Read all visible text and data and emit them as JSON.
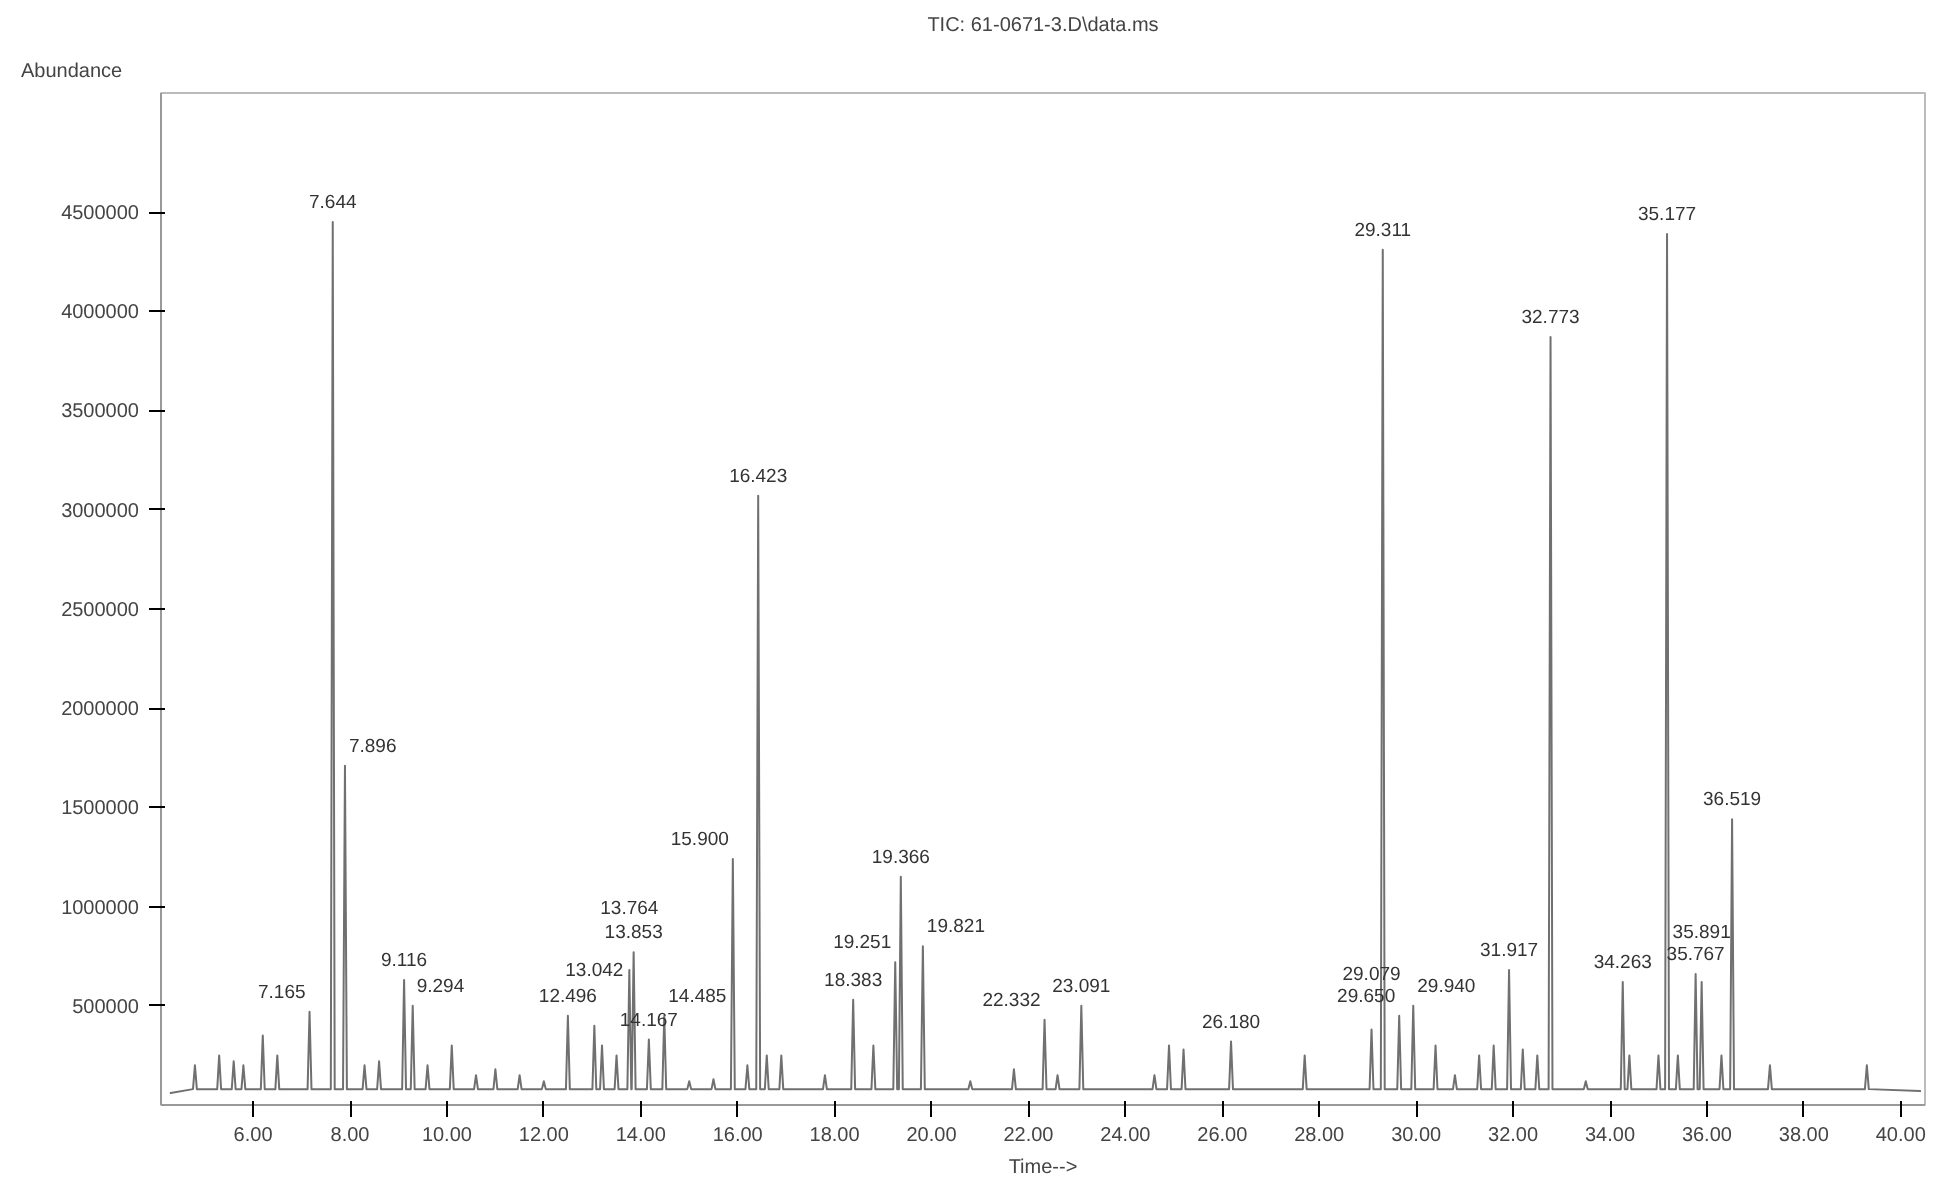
{
  "chart_data": {
    "type": "line",
    "title": "TIC: 61-0671-3.D\\data.ms",
    "xlabel": "Time-->",
    "ylabel": "Abundance",
    "xlim": [
      4.1,
      40.5
    ],
    "ylim": [
      0,
      5100000
    ],
    "xticks": [
      {
        "value": 6,
        "label": "6.00"
      },
      {
        "value": 8,
        "label": "8.00"
      },
      {
        "value": 10,
        "label": "10.00"
      },
      {
        "value": 12,
        "label": "12.00"
      },
      {
        "value": 14,
        "label": "14.00"
      },
      {
        "value": 16,
        "label": "16.00"
      },
      {
        "value": 18,
        "label": "18.00"
      },
      {
        "value": 20,
        "label": "20.00"
      },
      {
        "value": 22,
        "label": "22.00"
      },
      {
        "value": 24,
        "label": "24.00"
      },
      {
        "value": 26,
        "label": "26.00"
      },
      {
        "value": 28,
        "label": "28.00"
      },
      {
        "value": 30,
        "label": "30.00"
      },
      {
        "value": 32,
        "label": "32.00"
      },
      {
        "value": 34,
        "label": "34.00"
      },
      {
        "value": 36,
        "label": "36.00"
      },
      {
        "value": 38,
        "label": "38.00"
      },
      {
        "value": 40,
        "label": "40.00"
      }
    ],
    "yticks": [
      500000,
      1000000,
      1500000,
      2000000,
      2500000,
      3000000,
      3500000,
      4000000,
      4500000
    ],
    "grid": false,
    "series": [
      {
        "color": "#707070",
        "x": [
          4.3,
          4.76,
          4.8,
          4.84,
          5.26,
          5.3,
          5.34,
          5.56,
          5.6,
          5.64,
          5.76,
          5.8,
          5.84,
          6.16,
          6.2,
          6.24,
          6.46,
          6.5,
          6.54,
          7.125,
          7.165,
          7.205,
          7.604,
          7.644,
          7.684,
          7.856,
          7.896,
          7.936,
          8.26,
          8.3,
          8.34,
          8.56,
          8.6,
          8.64,
          9.076,
          9.116,
          9.156,
          9.254,
          9.294,
          9.334,
          9.56,
          9.6,
          9.64,
          10.06,
          10.1,
          10.14,
          10.56,
          10.6,
          10.64,
          10.96,
          11.0,
          11.04,
          11.46,
          11.5,
          11.54,
          11.96,
          12.0,
          12.04,
          12.456,
          12.496,
          12.536,
          13.002,
          13.042,
          13.082,
          13.16,
          13.2,
          13.24,
          13.46,
          13.5,
          13.54,
          13.724,
          13.764,
          13.804,
          13.813,
          13.853,
          13.893,
          14.127,
          14.167,
          14.207,
          14.445,
          14.485,
          14.525,
          14.96,
          15.0,
          15.04,
          15.46,
          15.5,
          15.54,
          15.86,
          15.9,
          15.94,
          16.16,
          16.2,
          16.24,
          16.383,
          16.423,
          16.463,
          16.56,
          16.6,
          16.64,
          16.86,
          16.9,
          16.94,
          17.76,
          17.8,
          17.84,
          18.343,
          18.383,
          18.423,
          18.76,
          18.8,
          18.84,
          19.211,
          19.251,
          19.291,
          19.326,
          19.366,
          19.406,
          19.781,
          19.821,
          19.861,
          20.76,
          20.8,
          20.84,
          21.66,
          21.7,
          21.74,
          22.292,
          22.332,
          22.372,
          22.56,
          22.6,
          22.64,
          23.051,
          23.091,
          23.131,
          24.56,
          24.6,
          24.64,
          24.86,
          24.9,
          24.94,
          25.16,
          25.2,
          25.24,
          26.14,
          26.18,
          26.22,
          27.66,
          27.7,
          27.74,
          29.039,
          29.079,
          29.119,
          29.271,
          29.311,
          29.351,
          29.61,
          29.65,
          29.69,
          29.9,
          29.94,
          29.98,
          30.36,
          30.4,
          30.44,
          30.76,
          30.8,
          30.84,
          31.26,
          31.3,
          31.34,
          31.56,
          31.6,
          31.64,
          31.877,
          31.917,
          31.957,
          32.16,
          32.2,
          32.24,
          32.46,
          32.5,
          32.54,
          32.733,
          32.773,
          32.813,
          33.46,
          33.5,
          33.54,
          34.223,
          34.263,
          34.303,
          34.36,
          34.4,
          34.44,
          34.96,
          35.0,
          35.04,
          35.137,
          35.177,
          35.217,
          35.36,
          35.4,
          35.44,
          35.727,
          35.767,
          35.807,
          35.851,
          35.891,
          35.931,
          36.26,
          36.3,
          36.34,
          36.479,
          36.519,
          36.559,
          37.26,
          37.3,
          37.34,
          39.26,
          39.3,
          39.34,
          40.4
        ],
        "values": [
          60000,
          80000,
          200000,
          80000,
          80000,
          250000,
          80000,
          80000,
          220000,
          80000,
          80000,
          200000,
          80000,
          80000,
          350000,
          80000,
          80000,
          250000,
          80000,
          80000,
          470000,
          80000,
          80000,
          4450000,
          80000,
          80000,
          1710000,
          80000,
          80000,
          200000,
          80000,
          80000,
          220000,
          80000,
          80000,
          630000,
          80000,
          80000,
          500000,
          80000,
          80000,
          200000,
          80000,
          80000,
          300000,
          80000,
          80000,
          150000,
          80000,
          80000,
          180000,
          80000,
          80000,
          150000,
          80000,
          80000,
          120000,
          80000,
          80000,
          450000,
          80000,
          80000,
          400000,
          80000,
          80000,
          300000,
          80000,
          80000,
          250000,
          80000,
          80000,
          680000,
          80000,
          80000,
          770000,
          80000,
          80000,
          330000,
          80000,
          80000,
          450000,
          80000,
          80000,
          120000,
          80000,
          80000,
          130000,
          80000,
          80000,
          1240000,
          80000,
          80000,
          200000,
          80000,
          80000,
          3070000,
          80000,
          80000,
          250000,
          80000,
          80000,
          250000,
          80000,
          80000,
          150000,
          80000,
          80000,
          530000,
          80000,
          80000,
          300000,
          80000,
          80000,
          720000,
          80000,
          80000,
          1150000,
          80000,
          80000,
          800000,
          80000,
          80000,
          120000,
          80000,
          80000,
          180000,
          80000,
          80000,
          430000,
          80000,
          80000,
          150000,
          80000,
          80000,
          500000,
          80000,
          80000,
          150000,
          80000,
          80000,
          300000,
          80000,
          80000,
          280000,
          80000,
          80000,
          320000,
          80000,
          80000,
          250000,
          80000,
          80000,
          380000,
          80000,
          80000,
          4310000,
          80000,
          80000,
          450000,
          80000,
          80000,
          500000,
          80000,
          80000,
          300000,
          80000,
          80000,
          150000,
          80000,
          80000,
          250000,
          80000,
          80000,
          300000,
          80000,
          80000,
          680000,
          80000,
          80000,
          280000,
          80000,
          80000,
          250000,
          80000,
          80000,
          3870000,
          80000,
          80000,
          120000,
          80000,
          80000,
          620000,
          80000,
          80000,
          250000,
          80000,
          80000,
          250000,
          80000,
          80000,
          4390000,
          80000,
          80000,
          250000,
          80000,
          80000,
          660000,
          80000,
          80000,
          620000,
          80000,
          80000,
          250000,
          80000,
          80000,
          1440000,
          80000,
          80000,
          200000,
          80000,
          80000,
          200000,
          80000,
          70000
        ]
      }
    ],
    "annotations": [
      {
        "text": "7.165",
        "x": 7.165,
        "y": 470000
      },
      {
        "text": "7.644",
        "x": 7.644,
        "y": 4450000
      },
      {
        "text": "7.896",
        "x": 7.896,
        "y": 1710000
      },
      {
        "text": "9.116",
        "x": 9.116,
        "y": 630000
      },
      {
        "text": "9.294",
        "x": 9.294,
        "y": 500000
      },
      {
        "text": "12.496",
        "x": 12.496,
        "y": 450000
      },
      {
        "text": "13.042",
        "x": 13.042,
        "y": 400000
      },
      {
        "text": "13.764",
        "x": 13.764,
        "y": 680000
      },
      {
        "text": "13.853",
        "x": 13.853,
        "y": 770000
      },
      {
        "text": "14.167",
        "x": 14.167,
        "y": 330000
      },
      {
        "text": "14.485",
        "x": 14.485,
        "y": 450000
      },
      {
        "text": "15.900",
        "x": 15.9,
        "y": 1240000
      },
      {
        "text": "16.423",
        "x": 16.423,
        "y": 3070000
      },
      {
        "text": "18.383",
        "x": 18.383,
        "y": 530000
      },
      {
        "text": "19.251",
        "x": 19.251,
        "y": 720000
      },
      {
        "text": "19.366",
        "x": 19.366,
        "y": 1150000
      },
      {
        "text": "19.821",
        "x": 19.821,
        "y": 800000
      },
      {
        "text": "22.332",
        "x": 22.332,
        "y": 430000
      },
      {
        "text": "23.091",
        "x": 23.091,
        "y": 500000
      },
      {
        "text": "26.180",
        "x": 26.18,
        "y": 320000
      },
      {
        "text": "29.079",
        "x": 29.079,
        "y": 380000
      },
      {
        "text": "29.311",
        "x": 29.311,
        "y": 4310000
      },
      {
        "text": "29.650",
        "x": 29.65,
        "y": 450000
      },
      {
        "text": "29.940",
        "x": 29.94,
        "y": 500000
      },
      {
        "text": "31.917",
        "x": 31.917,
        "y": 680000
      },
      {
        "text": "32.773",
        "x": 32.773,
        "y": 3870000
      },
      {
        "text": "34.263",
        "x": 34.263,
        "y": 620000
      },
      {
        "text": "35.177",
        "x": 35.177,
        "y": 4390000
      },
      {
        "text": "35.767",
        "x": 35.767,
        "y": 660000
      },
      {
        "text": "35.891",
        "x": 35.891,
        "y": 620000
      },
      {
        "text": "36.519",
        "x": 36.519,
        "y": 1440000
      }
    ]
  }
}
